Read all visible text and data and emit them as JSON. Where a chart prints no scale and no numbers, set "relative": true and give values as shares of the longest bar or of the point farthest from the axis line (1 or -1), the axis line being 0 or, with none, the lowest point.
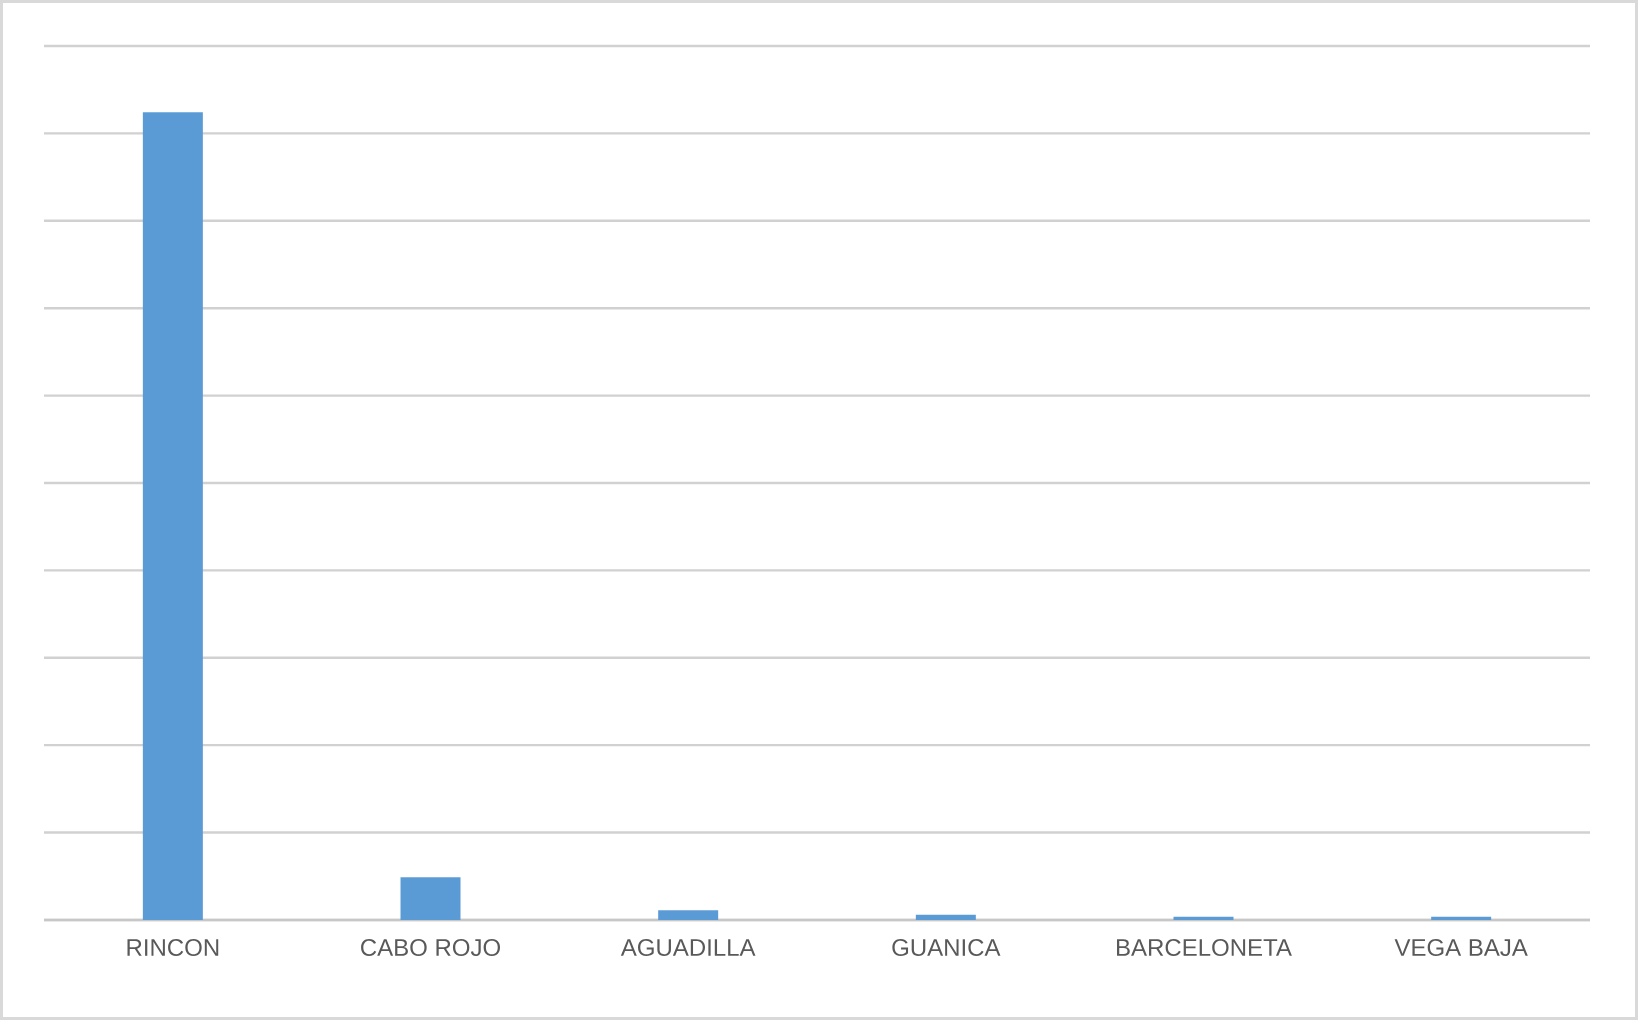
{
  "chart_data": {
    "type": "bar",
    "relative": true,
    "grid": "y",
    "color": "#5b9bd5",
    "categories": [
      "RINCON",
      "CABO ROJO",
      "AGUADILLA",
      "GUANICA",
      "BARCELONETA",
      "VEGA BAJA"
    ],
    "values": [
      1,
      0.053,
      0.012,
      0.0065,
      0.004,
      0.004
    ]
  }
}
